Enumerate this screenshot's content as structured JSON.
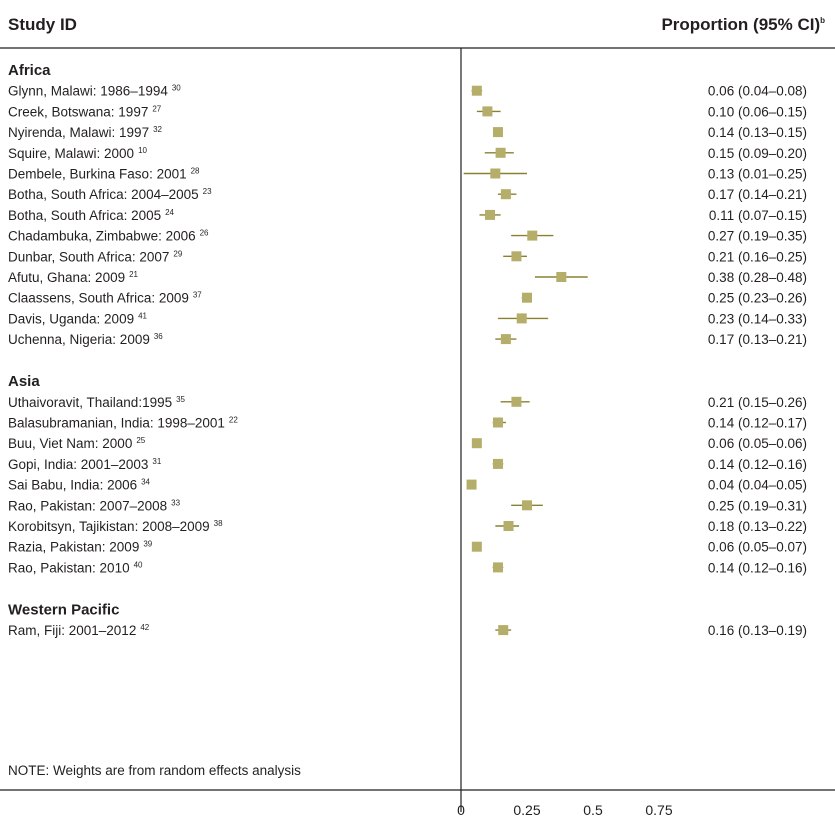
{
  "header": {
    "study_col": "Study ID",
    "proportion_col": "Proportion (95% CI)",
    "proportion_sup": "b"
  },
  "note": "NOTE: Weights are from random effects analysis",
  "chart_data": {
    "type": "forest",
    "x_ticks": [
      "0",
      "0.25",
      "0.5",
      "0.75"
    ],
    "x_tick_values": [
      0,
      0.25,
      0.5,
      0.75
    ],
    "xlim": [
      0,
      0.75
    ],
    "reference_line": 0,
    "marker_color": "#b5ad6a",
    "groups": [
      {
        "name": "Africa",
        "studies": [
          {
            "label": "Glynn, Malawi: 1986–1994",
            "ref": "30",
            "est": 0.06,
            "lo": 0.04,
            "hi": 0.08,
            "ci_text": "0.06 (0.04–0.08)"
          },
          {
            "label": "Creek, Botswana: 1997",
            "ref": "27",
            "est": 0.1,
            "lo": 0.06,
            "hi": 0.15,
            "ci_text": "0.10 (0.06–0.15)"
          },
          {
            "label": "Nyirenda, Malawi: 1997",
            "ref": "32",
            "est": 0.14,
            "lo": 0.13,
            "hi": 0.15,
            "ci_text": "0.14 (0.13–0.15)"
          },
          {
            "label": "Squire, Malawi: 2000",
            "ref": "10",
            "est": 0.15,
            "lo": 0.09,
            "hi": 0.2,
            "ci_text": "0.15 (0.09–0.20)"
          },
          {
            "label": "Dembele, Burkina Faso: 2001",
            "ref": "28",
            "est": 0.13,
            "lo": 0.01,
            "hi": 0.25,
            "ci_text": "0.13 (0.01–0.25)"
          },
          {
            "label": "Botha, South Africa: 2004–2005",
            "ref": "23",
            "est": 0.17,
            "lo": 0.14,
            "hi": 0.21,
            "ci_text": "0.17 (0.14–0.21)"
          },
          {
            "label": "Botha, South Africa: 2005",
            "ref": "24",
            "est": 0.11,
            "lo": 0.07,
            "hi": 0.15,
            "ci_text": "0.11 (0.07–0.15)"
          },
          {
            "label": "Chadambuka, Zimbabwe: 2006",
            "ref": "26",
            "est": 0.27,
            "lo": 0.19,
            "hi": 0.35,
            "ci_text": "0.27 (0.19–0.35)"
          },
          {
            "label": "Dunbar, South Africa: 2007",
            "ref": "29",
            "est": 0.21,
            "lo": 0.16,
            "hi": 0.25,
            "ci_text": "0.21 (0.16–0.25)"
          },
          {
            "label": "Afutu, Ghana: 2009",
            "ref": "21",
            "est": 0.38,
            "lo": 0.28,
            "hi": 0.48,
            "ci_text": "0.38 (0.28–0.48)"
          },
          {
            "label": "Claassens, South Africa: 2009",
            "ref": "37",
            "est": 0.25,
            "lo": 0.23,
            "hi": 0.26,
            "ci_text": "0.25 (0.23–0.26)"
          },
          {
            "label": "Davis, Uganda: 2009",
            "ref": "41",
            "est": 0.23,
            "lo": 0.14,
            "hi": 0.33,
            "ci_text": "0.23 (0.14–0.33)"
          },
          {
            "label": "Uchenna, Nigeria: 2009",
            "ref": "36",
            "est": 0.17,
            "lo": 0.13,
            "hi": 0.21,
            "ci_text": "0.17 (0.13–0.21)"
          }
        ]
      },
      {
        "name": "Asia",
        "studies": [
          {
            "label": "Uthaivoravit, Thailand:1995",
            "ref": "35",
            "est": 0.21,
            "lo": 0.15,
            "hi": 0.26,
            "ci_text": "0.21 (0.15–0.26)"
          },
          {
            "label": "Balasubramanian, India: 1998–2001",
            "ref": "22",
            "est": 0.14,
            "lo": 0.12,
            "hi": 0.17,
            "ci_text": "0.14 (0.12–0.17)"
          },
          {
            "label": "Buu, Viet Nam: 2000",
            "ref": "25",
            "est": 0.06,
            "lo": 0.05,
            "hi": 0.06,
            "ci_text": "0.06 (0.05–0.06)"
          },
          {
            "label": "Gopi, India: 2001–2003",
            "ref": "31",
            "est": 0.14,
            "lo": 0.12,
            "hi": 0.16,
            "ci_text": "0.14 (0.12–0.16)"
          },
          {
            "label": "Sai Babu, India: 2006",
            "ref": "34",
            "est": 0.04,
            "lo": 0.04,
            "hi": 0.05,
            "ci_text": "0.04 (0.04–0.05)"
          },
          {
            "label": "Rao, Pakistan: 2007–2008",
            "ref": "33",
            "est": 0.25,
            "lo": 0.19,
            "hi": 0.31,
            "ci_text": "0.25 (0.19–0.31)"
          },
          {
            "label": "Korobitsyn, Tajikistan: 2008–2009",
            "ref": "38",
            "est": 0.18,
            "lo": 0.13,
            "hi": 0.22,
            "ci_text": "0.18 (0.13–0.22)"
          },
          {
            "label": "Razia, Pakistan: 2009",
            "ref": "39",
            "est": 0.06,
            "lo": 0.05,
            "hi": 0.07,
            "ci_text": "0.06 (0.05–0.07)"
          },
          {
            "label": "Rao, Pakistan: 2010",
            "ref": "40",
            "est": 0.14,
            "lo": 0.12,
            "hi": 0.16,
            "ci_text": "0.14 (0.12–0.16)"
          }
        ]
      },
      {
        "name": "Western Pacific",
        "studies": [
          {
            "label": "Ram, Fiji: 2001–2012",
            "ref": "42",
            "est": 0.16,
            "lo": 0.13,
            "hi": 0.19,
            "ci_text": "0.16 (0.13–0.19)"
          }
        ]
      }
    ]
  }
}
